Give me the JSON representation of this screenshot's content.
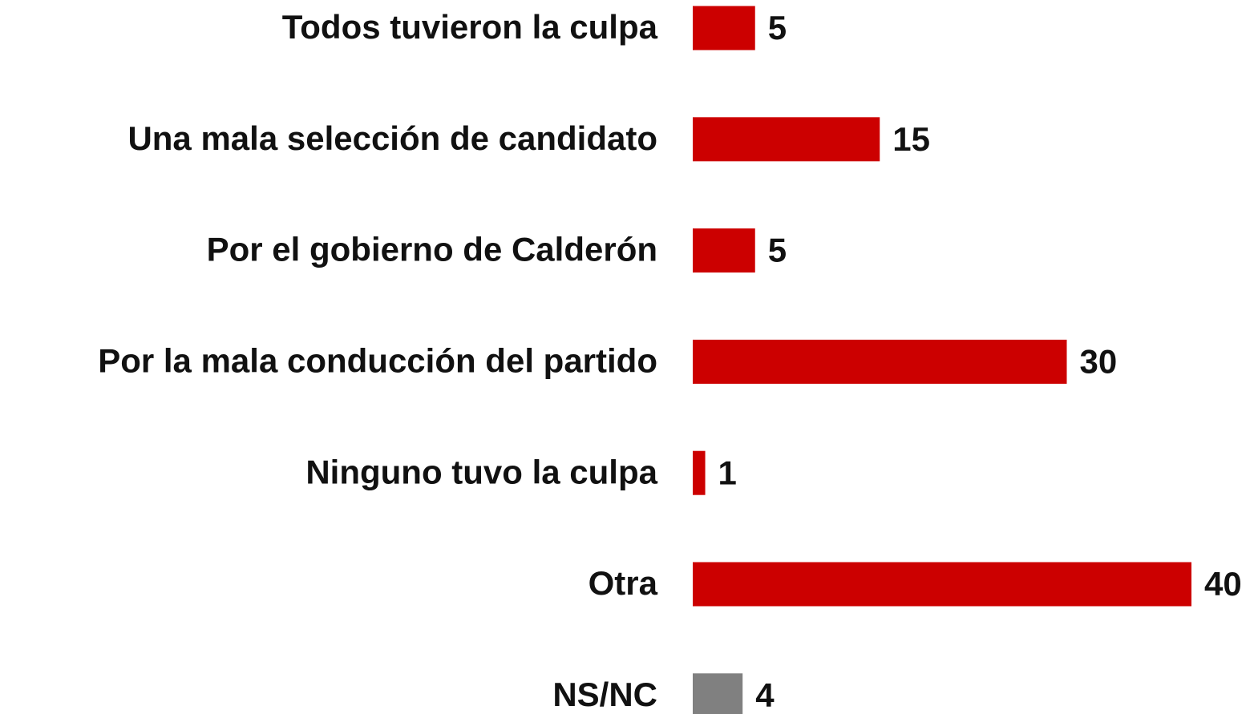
{
  "chart_data": {
    "type": "hbar",
    "categories": [
      "Todos tuvieron la culpa",
      "Una mala selección de candidato",
      "Por el gobierno de Calderón",
      "Por la mala conducción del partido",
      "Ninguno tuvo la culpa",
      "Otra",
      "NS/NC"
    ],
    "values": [
      5,
      15,
      5,
      30,
      1,
      40,
      4
    ],
    "colors": [
      "#cc0000",
      "#cc0000",
      "#cc0000",
      "#cc0000",
      "#cc0000",
      "#cc0000",
      "#808080"
    ],
    "xlim": [
      0,
      40
    ]
  }
}
